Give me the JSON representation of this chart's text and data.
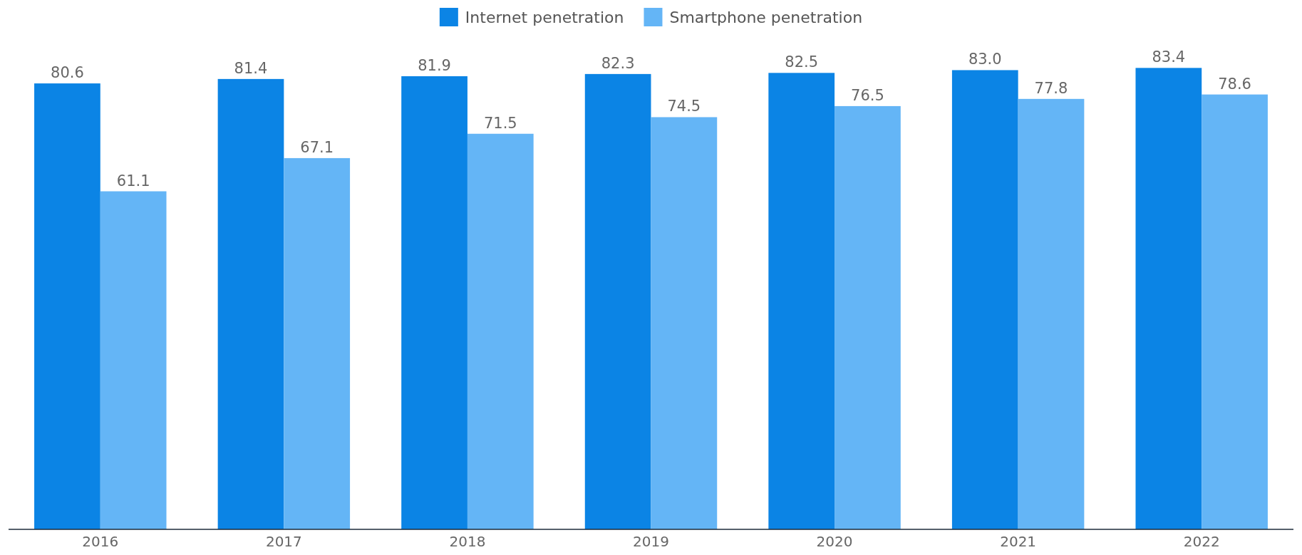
{
  "chart_data": {
    "type": "bar",
    "categories": [
      "2016",
      "2017",
      "2018",
      "2019",
      "2020",
      "2021",
      "2022"
    ],
    "series": [
      {
        "name": "Internet penetration",
        "color": "#0b84e5",
        "values": [
          80.6,
          81.4,
          81.9,
          82.3,
          82.5,
          83.0,
          83.4
        ],
        "value_labels": [
          "80.6",
          "81.4",
          "81.9",
          "82.3",
          "82.5",
          "83.0",
          "83.4"
        ]
      },
      {
        "name": "Smartphone penetration",
        "color": "#64b5f6",
        "values": [
          61.1,
          67.1,
          71.5,
          74.5,
          76.5,
          77.8,
          78.6
        ],
        "value_labels": [
          "61.1",
          "67.1",
          "71.5",
          "74.5",
          "76.5",
          "77.8",
          "78.6"
        ]
      }
    ],
    "legend": "top",
    "grid": false
  }
}
